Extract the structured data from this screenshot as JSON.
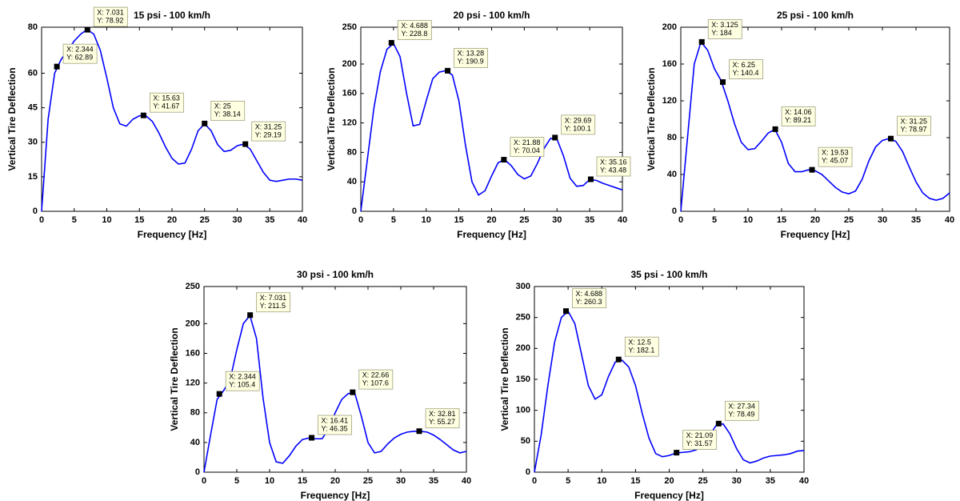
{
  "chart_data": [
    {
      "type": "line",
      "title": "15 psi - 100 km/h",
      "x_label": "Frequency [Hz]",
      "y_label": "Vertical Tire Deflection",
      "color": "#0000ff",
      "xlim": [
        0,
        40
      ],
      "xticks": [
        0,
        5,
        10,
        15,
        20,
        25,
        30,
        35,
        40
      ],
      "ylim": [
        0,
        80
      ],
      "yticks": [
        0,
        15,
        30,
        45,
        60,
        80
      ],
      "x": [
        0,
        1,
        2,
        3,
        4,
        5,
        6,
        7,
        8,
        9,
        10,
        11,
        12,
        13,
        14,
        15,
        16,
        17,
        18,
        19,
        20,
        21,
        22,
        23,
        24,
        25,
        26,
        27,
        28,
        29,
        30,
        31,
        32,
        33,
        34,
        35,
        36,
        37,
        38,
        39,
        40
      ],
      "values": [
        0,
        40,
        60,
        66,
        70,
        74,
        77,
        79,
        77,
        70,
        58,
        45,
        38,
        37,
        40,
        41.5,
        41.5,
        39,
        34,
        28,
        23,
        20.5,
        21,
        27,
        35,
        38,
        35,
        29,
        26,
        26.5,
        28.5,
        29.2,
        27,
        22,
        17,
        13.5,
        13,
        13.5,
        14,
        14,
        13.5
      ],
      "datatips": [
        {
          "x": 2.344,
          "y": 62.89,
          "x_label": "X: 2.344",
          "y_label": "Y: 62.89"
        },
        {
          "x": 7.031,
          "y": 78.92,
          "x_label": "X: 7.031",
          "y_label": "Y: 78.92"
        },
        {
          "x": 15.63,
          "y": 41.67,
          "x_label": "X: 15.63",
          "y_label": "Y: 41.67"
        },
        {
          "x": 25,
          "y": 38.14,
          "x_label": "X: 25",
          "y_label": "Y: 38.14"
        },
        {
          "x": 31.25,
          "y": 29.19,
          "x_label": "X: 31.25",
          "y_label": "Y: 29.19"
        }
      ]
    },
    {
      "type": "line",
      "title": "20 psi - 100 km/h",
      "x_label": "Frequency [Hz]",
      "y_label": "Vertical Tire Deflection",
      "color": "#0000ff",
      "xlim": [
        0,
        40
      ],
      "xticks": [
        0,
        5,
        10,
        15,
        20,
        25,
        30,
        35,
        40
      ],
      "ylim": [
        0,
        250
      ],
      "yticks": [
        0,
        40,
        80,
        120,
        160,
        200,
        250
      ],
      "x": [
        0,
        1,
        2,
        3,
        4,
        5,
        6,
        7,
        8,
        9,
        10,
        11,
        12,
        13,
        14,
        15,
        16,
        17,
        18,
        19,
        20,
        21,
        22,
        23,
        24,
        25,
        26,
        27,
        28,
        29,
        30,
        31,
        32,
        33,
        34,
        35,
        36,
        37,
        38,
        39,
        40
      ],
      "values": [
        0,
        70,
        140,
        190,
        220,
        228,
        210,
        160,
        116,
        118,
        150,
        180,
        189,
        191,
        185,
        150,
        90,
        40,
        22,
        28,
        48,
        66,
        70,
        62,
        50,
        44,
        48,
        65,
        85,
        99,
        98,
        75,
        45,
        34,
        35,
        43,
        42,
        38,
        35,
        32,
        29
      ],
      "datatips": [
        {
          "x": 4.688,
          "y": 228.8,
          "x_label": "X: 4.688",
          "y_label": "Y: 228.8"
        },
        {
          "x": 13.28,
          "y": 190.9,
          "x_label": "X: 13.28",
          "y_label": "Y: 190.9"
        },
        {
          "x": 21.88,
          "y": 70.04,
          "x_label": "X: 21.88",
          "y_label": "Y: 70.04"
        },
        {
          "x": 29.69,
          "y": 100.1,
          "x_label": "X: 29.69",
          "y_label": "Y: 100.1"
        },
        {
          "x": 35.16,
          "y": 43.48,
          "x_label": "X: 35.16",
          "y_label": "Y: 43.48"
        }
      ]
    },
    {
      "type": "line",
      "title": "25 psi - 100 km/h",
      "x_label": "Frequency [Hz]",
      "y_label": "Vertical Tire Deflection",
      "color": "#0000ff",
      "xlim": [
        0,
        40
      ],
      "xticks": [
        0,
        5,
        10,
        15,
        20,
        25,
        30,
        35,
        40
      ],
      "ylim": [
        0,
        200
      ],
      "yticks": [
        0,
        40,
        80,
        120,
        160,
        200
      ],
      "x": [
        0,
        1,
        2,
        3,
        4,
        5,
        6,
        7,
        8,
        9,
        10,
        11,
        12,
        13,
        14,
        15,
        16,
        17,
        18,
        19,
        20,
        21,
        22,
        23,
        24,
        25,
        26,
        27,
        28,
        29,
        30,
        31,
        32,
        33,
        34,
        35,
        36,
        37,
        38,
        39,
        40
      ],
      "values": [
        0,
        80,
        160,
        184,
        175,
        155,
        142,
        120,
        95,
        75,
        67,
        68,
        76,
        85,
        89,
        75,
        52,
        43,
        43,
        45,
        44,
        40,
        33,
        26,
        21,
        19,
        22,
        35,
        55,
        70,
        77,
        79,
        76,
        65,
        48,
        32,
        20,
        14,
        12,
        14,
        20
      ],
      "datatips": [
        {
          "x": 3.125,
          "y": 184,
          "x_label": "X: 3.125",
          "y_label": "Y: 184"
        },
        {
          "x": 6.25,
          "y": 140.4,
          "x_label": "X: 6.25",
          "y_label": "Y: 140.4"
        },
        {
          "x": 14.06,
          "y": 89.21,
          "x_label": "X: 14.06",
          "y_label": "Y: 89.21"
        },
        {
          "x": 19.53,
          "y": 45.07,
          "x_label": "X: 19.53",
          "y_label": "Y: 45.07"
        },
        {
          "x": 31.25,
          "y": 78.97,
          "x_label": "X: 31.25",
          "y_label": "Y: 78.97"
        }
      ]
    },
    {
      "type": "line",
      "title": "30 psi - 100 km/h",
      "x_label": "Frequency [Hz]",
      "y_label": "Vertical Tire Deflection",
      "color": "#0000ff",
      "xlim": [
        0,
        40
      ],
      "xticks": [
        0,
        5,
        10,
        15,
        20,
        25,
        30,
        35,
        40
      ],
      "ylim": [
        0,
        250
      ],
      "yticks": [
        0,
        40,
        80,
        120,
        160,
        200,
        250
      ],
      "x": [
        0,
        1,
        2,
        3,
        4,
        5,
        6,
        7,
        8,
        9,
        10,
        11,
        12,
        13,
        14,
        15,
        16,
        17,
        18,
        19,
        20,
        21,
        22,
        23,
        24,
        25,
        26,
        27,
        28,
        29,
        30,
        31,
        32,
        33,
        34,
        35,
        36,
        37,
        38,
        39,
        40
      ],
      "values": [
        0,
        50,
        98,
        110,
        125,
        165,
        200,
        211,
        180,
        100,
        40,
        14,
        12,
        22,
        35,
        44,
        46,
        45,
        45,
        58,
        80,
        98,
        106,
        106,
        75,
        40,
        26,
        28,
        38,
        46,
        51,
        54,
        55,
        55,
        54,
        50,
        44,
        37,
        30,
        26,
        28
      ],
      "datatips": [
        {
          "x": 2.344,
          "y": 105.4,
          "x_label": "X: 2.344",
          "y_label": "Y: 105.4"
        },
        {
          "x": 7.031,
          "y": 211.5,
          "x_label": "X: 7.031",
          "y_label": "Y: 211.5"
        },
        {
          "x": 16.41,
          "y": 46.35,
          "x_label": "X: 16.41",
          "y_label": "Y: 46.35"
        },
        {
          "x": 22.66,
          "y": 107.6,
          "x_label": "X: 22.66",
          "y_label": "Y: 107.6"
        },
        {
          "x": 32.81,
          "y": 55.27,
          "x_label": "X: 32.81",
          "y_label": "Y: 55.27"
        }
      ]
    },
    {
      "type": "line",
      "title": "35 psi - 100 km/h",
      "x_label": "Frequency [Hz]",
      "y_label": "Vertical Tire Deflection",
      "color": "#0000ff",
      "xlim": [
        0,
        40
      ],
      "xticks": [
        0,
        5,
        10,
        15,
        20,
        25,
        30,
        35,
        40
      ],
      "ylim": [
        0,
        300
      ],
      "yticks": [
        0,
        50,
        100,
        150,
        200,
        250,
        300
      ],
      "x": [
        0,
        1,
        2,
        3,
        4,
        5,
        6,
        7,
        8,
        9,
        10,
        11,
        12,
        13,
        14,
        15,
        16,
        17,
        18,
        19,
        20,
        21,
        22,
        23,
        24,
        25,
        26,
        27,
        28,
        29,
        30,
        31,
        32,
        33,
        34,
        35,
        36,
        37,
        38,
        39,
        40
      ],
      "values": [
        0,
        60,
        140,
        210,
        250,
        260,
        240,
        190,
        140,
        118,
        125,
        155,
        178,
        181,
        170,
        140,
        95,
        55,
        30,
        25,
        27,
        31,
        32,
        33,
        36,
        45,
        60,
        76,
        78,
        62,
        38,
        20,
        15,
        18,
        23,
        26,
        27,
        28,
        30,
        34,
        35
      ],
      "datatips": [
        {
          "x": 4.688,
          "y": 260.3,
          "x_label": "X: 4.688",
          "y_label": "Y: 260.3"
        },
        {
          "x": 12.5,
          "y": 182.1,
          "x_label": "X: 12.5",
          "y_label": "Y: 182.1"
        },
        {
          "x": 21.09,
          "y": 31.57,
          "x_label": "X: 21.09",
          "y_label": "Y: 31.57"
        },
        {
          "x": 27.34,
          "y": 78.49,
          "x_label": "X: 27.34",
          "y_label": "Y: 78.49"
        }
      ]
    }
  ]
}
